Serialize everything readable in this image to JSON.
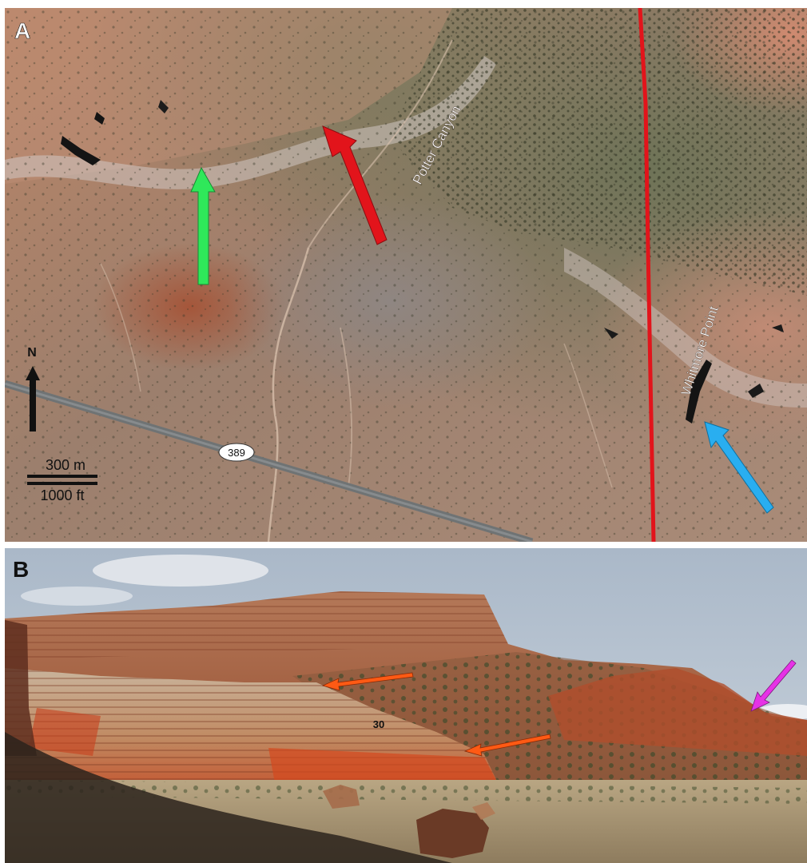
{
  "panel_a": {
    "letter": "A",
    "labels": {
      "potter_canyon": "Potter Canyon",
      "whitmore_point": "Whitmore Point",
      "north": "N",
      "route": "389"
    },
    "scale": {
      "metric": "300 m",
      "imperial": "1000 ft"
    },
    "colors": {
      "fault_line": "#e2141b",
      "red_arrow": "#e2141b",
      "green_arrow": "#2fe85a",
      "blue_arrow": "#29aef0",
      "north_arrow": "#111111"
    }
  },
  "panel_b": {
    "letter": "B",
    "labels": {
      "bed_number": "30"
    },
    "colors": {
      "orange_arrow": "#ff5a14",
      "magenta_arrow": "#e632e6"
    }
  }
}
